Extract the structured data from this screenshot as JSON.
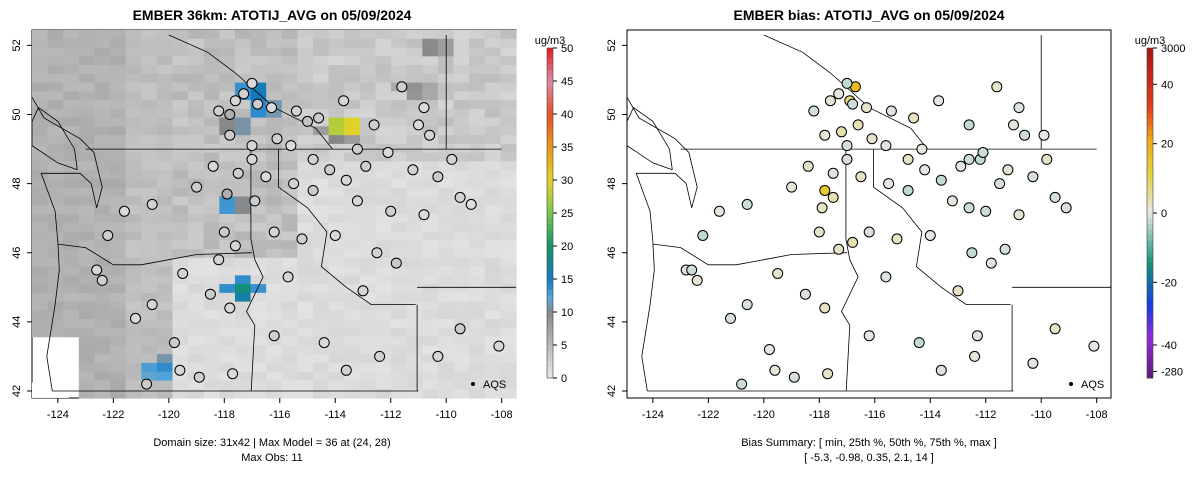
{
  "left": {
    "title": "EMBER 36km: ATOTIJ_AVG on 05/09/2024",
    "footer_line1": "Domain size: 31x42 | Max Model = 36 at (24, 28)",
    "footer_line2": "Max Obs: 11",
    "legend_unit": "ug/m3",
    "legend_ticks": [
      "0",
      "5",
      "10",
      "15",
      "20",
      "25",
      "30",
      "35",
      "40",
      "45",
      "50"
    ],
    "aqs_label": "AQS"
  },
  "right": {
    "title": "EMBER bias: ATOTIJ_AVG on 05/09/2024",
    "footer_line1": "Bias Summary: [ min, 25th %, 50th %, 75th %, max ]",
    "footer_line2": "[ -5.3,   -0.98,   0.35,   2.1,   14 ]",
    "legend_unit": "ug/m3",
    "legend_ticks": [
      "-280",
      "-40",
      "-20",
      "0",
      "20",
      "40",
      "3000"
    ],
    "aqs_label": "AQS"
  },
  "x_ticks": [
    "-124",
    "-122",
    "-120",
    "-118",
    "-116",
    "-114",
    "-112",
    "-110",
    "-108"
  ],
  "y_ticks": [
    "42",
    "44",
    "46",
    "48",
    "50",
    "52"
  ],
  "chart_data": [
    {
      "type": "heatmap",
      "title": "EMBER 36km: ATOTIJ_AVG on 05/09/2024",
      "xlabel": "Longitude",
      "ylabel": "Latitude",
      "xlim": [
        -124.5,
        -107.7
      ],
      "ylim": [
        42,
        52.3
      ],
      "colorbar": {
        "label": "ug/m3",
        "range": [
          0,
          50
        ]
      },
      "domain_size": "31x42",
      "max_model": 36,
      "max_model_at": [
        24,
        28
      ],
      "max_obs": 11,
      "model_hotspots": [
        {
          "lon": -116.8,
          "lat": 50.6,
          "value": 18
        },
        {
          "lon": -116.6,
          "lat": 50.1,
          "value": 16
        },
        {
          "lon": -117.4,
          "lat": 49.6,
          "value": 13
        },
        {
          "lon": -113.6,
          "lat": 49.6,
          "value": 36
        },
        {
          "lon": -113.9,
          "lat": 49.4,
          "value": 12
        },
        {
          "lon": -117.7,
          "lat": 47.4,
          "value": 15
        },
        {
          "lon": -117.2,
          "lat": 45.0,
          "value": 20
        },
        {
          "lon": -120.1,
          "lat": 42.8,
          "value": 16
        },
        {
          "lon": -110.6,
          "lat": 51.8,
          "value": 11
        },
        {
          "lon": -111.2,
          "lat": 50.6,
          "value": 10
        }
      ],
      "observations": [
        {
          "lon": -117.8,
          "lat": 50.0,
          "value": 6
        },
        {
          "lon": -115.0,
          "lat": 49.8,
          "value": 4
        },
        {
          "lon": -113.2,
          "lat": 49.0,
          "value": 3
        },
        {
          "lon": -117.9,
          "lat": 47.7,
          "value": 6
        },
        {
          "lon": -116.9,
          "lat": 47.5,
          "value": 3
        },
        {
          "lon": -117.6,
          "lat": 46.2,
          "value": 2
        },
        {
          "lon": -118.2,
          "lat": 45.8,
          "value": 2
        },
        {
          "lon": -115.7,
          "lat": 45.3,
          "value": 2
        },
        {
          "lon": -113.0,
          "lat": 44.9,
          "value": 2
        },
        {
          "lon": -110.3,
          "lat": 43.0,
          "value": 2
        },
        {
          "lon": -119.8,
          "lat": 43.4,
          "value": 3
        },
        {
          "lon": -120.6,
          "lat": 44.5,
          "value": 2
        },
        {
          "lon": -109.1,
          "lat": 47.4,
          "value": 1
        }
      ]
    },
    {
      "type": "scatter",
      "title": "EMBER bias: ATOTIJ_AVG on 05/09/2024",
      "xlabel": "Longitude",
      "ylabel": "Latitude",
      "xlim": [
        -124.5,
        -107.7
      ],
      "ylim": [
        42,
        52.3
      ],
      "colorbar": {
        "label": "ug/m3",
        "ticks": [
          -280,
          -40,
          -20,
          0,
          20,
          40,
          3000
        ]
      },
      "bias_summary": {
        "min": -5.3,
        "p25": -0.98,
        "p50": 0.35,
        "p75": 2.1,
        "max": 14
      },
      "points": [
        {
          "lon": -116.7,
          "lat": 50.8,
          "value": 14
        },
        {
          "lon": -116.9,
          "lat": 50.4,
          "value": 6
        },
        {
          "lon": -117.2,
          "lat": 49.5,
          "value": 3
        },
        {
          "lon": -116.6,
          "lat": 49.7,
          "value": 2.5
        },
        {
          "lon": -117.8,
          "lat": 47.8,
          "value": 11
        },
        {
          "lon": -117.5,
          "lat": 47.6,
          "value": 3
        },
        {
          "lon": -117.9,
          "lat": 47.3,
          "value": 2
        },
        {
          "lon": -116.8,
          "lat": 46.3,
          "value": 3
        },
        {
          "lon": -117.3,
          "lat": 46.1,
          "value": 2
        },
        {
          "lon": -113.0,
          "lat": 44.9,
          "value": 2
        },
        {
          "lon": -115.6,
          "lat": 45.3,
          "value": -0.5
        },
        {
          "lon": -114.3,
          "lat": 49.0,
          "value": 0.4
        },
        {
          "lon": -112.6,
          "lat": 48.7,
          "value": -1.5
        },
        {
          "lon": -112.2,
          "lat": 48.7,
          "value": -2
        },
        {
          "lon": -111.5,
          "lat": 48.0,
          "value": -1
        },
        {
          "lon": -112.6,
          "lat": 47.3,
          "value": -1.5
        },
        {
          "lon": -111.3,
          "lat": 46.1,
          "value": -1
        },
        {
          "lon": -109.1,
          "lat": 47.3,
          "value": -0.8
        },
        {
          "lon": -109.9,
          "lat": 49.4,
          "value": 0
        },
        {
          "lon": -110.3,
          "lat": 42.8,
          "value": -0.3
        },
        {
          "lon": -112.3,
          "lat": 43.6,
          "value": -0.5
        },
        {
          "lon": -120.6,
          "lat": 44.5,
          "value": -0.9
        },
        {
          "lon": -119.8,
          "lat": 43.2,
          "value": 0.2
        },
        {
          "lon": -122.8,
          "lat": 45.5,
          "value": 0.5
        }
      ]
    }
  ]
}
